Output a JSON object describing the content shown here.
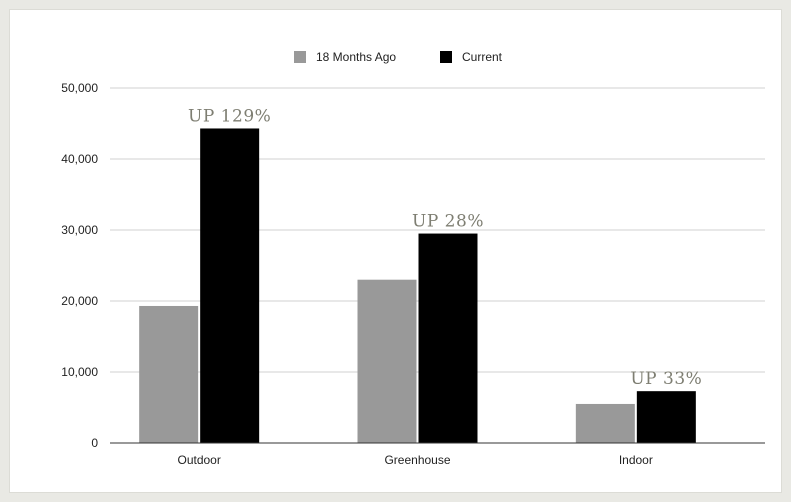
{
  "chart_data": {
    "type": "bar",
    "categories": [
      "Outdoor",
      "Greenhouse",
      "Indoor"
    ],
    "series": [
      {
        "name": "18 Months Ago",
        "values": [
          19300,
          23000,
          5500
        ],
        "color": "#999999"
      },
      {
        "name": "Current",
        "values": [
          44300,
          29500,
          7300
        ],
        "color": "#000000"
      }
    ],
    "annotations": [
      "UP 129%",
      "UP 28%",
      "UP 33%"
    ],
    "ylim": [
      0,
      50000
    ],
    "yticks": [
      0,
      10000,
      20000,
      30000,
      40000,
      50000
    ],
    "ytick_labels": [
      "0",
      "10,000",
      "20,000",
      "30,000",
      "40,000",
      "50,000"
    ],
    "legend_position": "top",
    "grid": true,
    "title": "",
    "xlabel": "",
    "ylabel": ""
  }
}
